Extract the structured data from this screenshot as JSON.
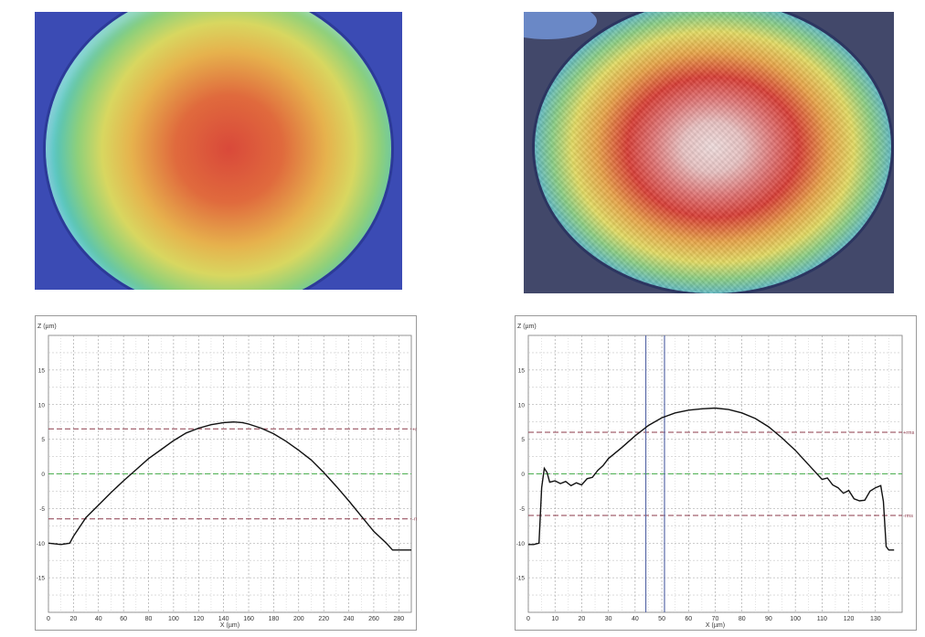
{
  "images": [
    {
      "depiction": "3D surface height map, smooth dome"
    },
    {
      "depiction": "3D surface height map, rough textured dome"
    }
  ],
  "chart_data": [
    {
      "type": "line",
      "ylabel": "Z (µm)",
      "xlabel": "X (µm)",
      "xlim": [
        0,
        290
      ],
      "ylim": [
        -20,
        20
      ],
      "xticks": [
        0,
        20,
        40,
        60,
        80,
        100,
        120,
        140,
        160,
        180,
        200,
        220,
        240,
        260,
        280
      ],
      "yticks": [
        -15,
        -10,
        -5,
        0,
        5,
        10,
        15
      ],
      "grid": true,
      "reference_lines": [
        {
          "label": "+rms",
          "y": 6.5,
          "color": "#8b3a4a"
        },
        {
          "label": "",
          "y": 0,
          "color": "#4caf50"
        },
        {
          "label": "-rms",
          "y": -6.5,
          "color": "#8b3a4a"
        }
      ],
      "series": [
        {
          "x": [
            0,
            10,
            17,
            20,
            30,
            40,
            50,
            60,
            70,
            80,
            90,
            100,
            110,
            120,
            130,
            140,
            148,
            155,
            160,
            170,
            180,
            190,
            200,
            210,
            220,
            230,
            240,
            250,
            260,
            270,
            275,
            280,
            290
          ],
          "y": [
            -10.0,
            -10.2,
            -10.0,
            -9.0,
            -6.3,
            -4.5,
            -2.7,
            -1.0,
            0.6,
            2.2,
            3.5,
            4.8,
            5.9,
            6.6,
            7.1,
            7.4,
            7.5,
            7.4,
            7.2,
            6.6,
            5.8,
            4.7,
            3.4,
            2.0,
            0.2,
            -1.8,
            -3.9,
            -6.1,
            -8.3,
            -10.0,
            -11.0,
            -11.0,
            -11.0
          ]
        }
      ]
    },
    {
      "type": "line",
      "ylabel": "Z (µm)",
      "xlabel": "X (µm)",
      "xlim": [
        0,
        140
      ],
      "ylim": [
        -20,
        20
      ],
      "xticks": [
        0,
        10,
        20,
        30,
        40,
        50,
        60,
        70,
        80,
        90,
        100,
        110,
        120,
        130
      ],
      "yticks": [
        -15,
        -10,
        -5,
        0,
        5,
        10,
        15
      ],
      "grid": true,
      "reference_lines": [
        {
          "label": "+rms",
          "y": 6,
          "color": "#8b3a4a"
        },
        {
          "label": "",
          "y": 0,
          "color": "#4caf50"
        },
        {
          "label": "-rms",
          "y": -6,
          "color": "#8b3a4a"
        }
      ],
      "cursor_lines": [
        44,
        51
      ],
      "series": [
        {
          "x": [
            0,
            2,
            4,
            5,
            6,
            7,
            8,
            10,
            12,
            14,
            16,
            18,
            20,
            22,
            24,
            26,
            28,
            30,
            35,
            40,
            45,
            50,
            55,
            60,
            65,
            70,
            75,
            80,
            85,
            90,
            95,
            100,
            105,
            110,
            112,
            114,
            116,
            118,
            120,
            122,
            124,
            126,
            128,
            130,
            132,
            133,
            134,
            135,
            137
          ],
          "y": [
            -10.2,
            -10.2,
            -10.0,
            -2.0,
            0.8,
            0.2,
            -1.2,
            -1.0,
            -1.4,
            -1.1,
            -1.7,
            -1.3,
            -1.6,
            -0.7,
            -0.5,
            0.5,
            1.2,
            2.2,
            3.8,
            5.5,
            7.0,
            8.1,
            8.8,
            9.2,
            9.4,
            9.5,
            9.3,
            8.8,
            8.0,
            6.8,
            5.2,
            3.4,
            1.3,
            -0.8,
            -0.6,
            -1.6,
            -2.0,
            -2.8,
            -2.4,
            -3.6,
            -3.9,
            -3.8,
            -2.5,
            -2.0,
            -1.7,
            -4.0,
            -10.5,
            -11.0,
            -11.0
          ]
        }
      ]
    }
  ]
}
